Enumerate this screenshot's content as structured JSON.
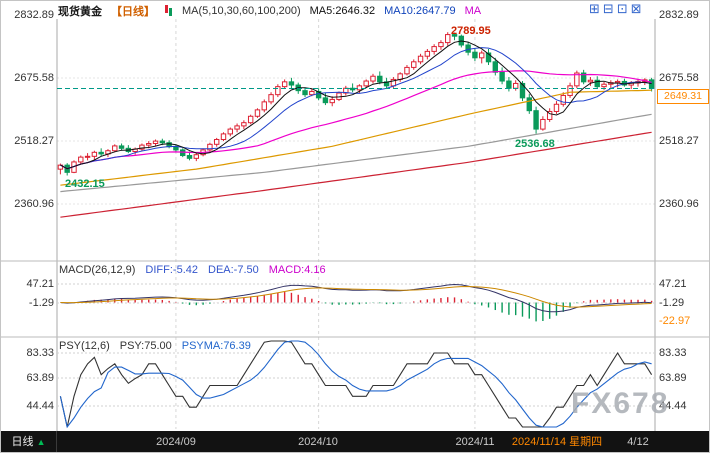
{
  "header": {
    "symbol": "现货黄金",
    "period_tag": "【日线】",
    "ma_settings": "MA(5,10,30,60,100,200)",
    "ma5": "MA5:2646.32",
    "ma10": "MA10:2647.79",
    "ma_more": "MA",
    "toolbar": [
      {
        "name": "zoom-in-icon",
        "glyph": "⊞"
      },
      {
        "name": "zoom-out-icon",
        "glyph": "⊟"
      },
      {
        "name": "pane-layout-icon",
        "glyph": "⊡"
      },
      {
        "name": "fullscreen-icon",
        "glyph": "⊠"
      }
    ]
  },
  "main_panel": {
    "ticks": [
      "2832.89",
      "2675.58",
      "2518.27",
      "2360.96"
    ],
    "last_price": "2649.31",
    "high_label": "2789.95",
    "low_label": "2536.68",
    "left_low_label": "2432.15"
  },
  "macd_panel": {
    "title": "MACD(26,12,9)",
    "diff": "DIFF:-5.42",
    "dea": "DEA:-7.50",
    "macd": "MACD:4.16",
    "ticks_left": [
      "47.21",
      "-1.29"
    ],
    "ticks_right": [
      "47.21",
      "-1.29",
      "-22.97"
    ]
  },
  "psy_panel": {
    "title": "PSY(12,6)",
    "psy": "PSY:75.00",
    "psyma": "PSYMA:76.39",
    "ticks": [
      "83.33",
      "63.89",
      "44.44"
    ]
  },
  "bottom_bar": {
    "period": "日线",
    "arrow": "▲",
    "dates": [
      "2024/09",
      "2024/10",
      "2024/11"
    ],
    "selected": "2024/11/14 星期四",
    "end": "4/12"
  },
  "watermark": "FX678",
  "chart_data": {
    "type": "candlestick",
    "title": "现货黄金 日线 (Spot Gold Daily)",
    "price_axis": {
      "ticks": [
        2832.89,
        2675.58,
        2518.27,
        2360.96
      ],
      "last": 2649.31
    },
    "x_axis": {
      "month_tick_indices": [
        17,
        38,
        61
      ]
    },
    "annotations": {
      "high": 2789.95,
      "swing_low": 2536.68,
      "left_low": 2432.15
    },
    "readout": {
      "ma5": 2646.32,
      "ma10": 2647.79,
      "diff": -5.42,
      "dea": -7.5,
      "macd": 4.16,
      "psy": 75.0,
      "psyma": 76.39
    },
    "up_color": "#dd2233",
    "down_color": "#0a9a5a",
    "last_price_line_color": "#009988",
    "candles": [
      [
        2448,
        2462,
        2435,
        2458
      ],
      [
        2458,
        2463,
        2432.15,
        2440
      ],
      [
        2440,
        2470,
        2438,
        2466
      ],
      [
        2466,
        2482,
        2460,
        2478
      ],
      [
        2478,
        2488,
        2470,
        2480
      ],
      [
        2480,
        2494,
        2472,
        2490
      ],
      [
        2490,
        2500,
        2480,
        2486
      ],
      [
        2486,
        2498,
        2478,
        2494
      ],
      [
        2494,
        2510,
        2490,
        2506
      ],
      [
        2506,
        2512,
        2494,
        2500
      ],
      [
        2500,
        2508,
        2488,
        2492
      ],
      [
        2492,
        2502,
        2484,
        2498
      ],
      [
        2498,
        2512,
        2494,
        2508
      ],
      [
        2508,
        2518,
        2500,
        2512
      ],
      [
        2512,
        2522,
        2506,
        2518
      ],
      [
        2518,
        2524,
        2508,
        2514
      ],
      [
        2514,
        2520,
        2500,
        2504
      ],
      [
        2504,
        2510,
        2492,
        2496
      ],
      [
        2496,
        2500,
        2478,
        2482
      ],
      [
        2482,
        2492,
        2470,
        2475
      ],
      [
        2475,
        2488,
        2468,
        2484
      ],
      [
        2484,
        2500,
        2480,
        2496
      ],
      [
        2496,
        2514,
        2492,
        2510
      ],
      [
        2510,
        2526,
        2504,
        2522
      ],
      [
        2522,
        2540,
        2518,
        2536
      ],
      [
        2536,
        2552,
        2530,
        2548
      ],
      [
        2548,
        2562,
        2540,
        2556
      ],
      [
        2556,
        2570,
        2548,
        2564
      ],
      [
        2564,
        2584,
        2560,
        2580
      ],
      [
        2580,
        2600,
        2576,
        2596
      ],
      [
        2596,
        2622,
        2590,
        2616
      ],
      [
        2616,
        2640,
        2610,
        2634
      ],
      [
        2634,
        2660,
        2628,
        2654
      ],
      [
        2654,
        2672,
        2648,
        2666
      ],
      [
        2666,
        2676,
        2650,
        2658
      ],
      [
        2658,
        2664,
        2636,
        2644
      ],
      [
        2644,
        2652,
        2628,
        2634
      ],
      [
        2634,
        2648,
        2630,
        2642
      ],
      [
        2642,
        2650,
        2620,
        2626
      ],
      [
        2626,
        2638,
        2608,
        2614
      ],
      [
        2614,
        2630,
        2605,
        2622
      ],
      [
        2622,
        2642,
        2618,
        2638
      ],
      [
        2638,
        2656,
        2632,
        2650
      ],
      [
        2650,
        2662,
        2640,
        2646
      ],
      [
        2646,
        2660,
        2638,
        2656
      ],
      [
        2656,
        2672,
        2650,
        2668
      ],
      [
        2668,
        2686,
        2662,
        2680
      ],
      [
        2680,
        2692,
        2660,
        2666
      ],
      [
        2666,
        2676,
        2648,
        2656
      ],
      [
        2656,
        2678,
        2650,
        2672
      ],
      [
        2672,
        2690,
        2666,
        2686
      ],
      [
        2686,
        2708,
        2682,
        2702
      ],
      [
        2702,
        2722,
        2696,
        2716
      ],
      [
        2716,
        2736,
        2710,
        2730
      ],
      [
        2730,
        2748,
        2722,
        2742
      ],
      [
        2742,
        2760,
        2734,
        2754
      ],
      [
        2754,
        2770,
        2746,
        2764
      ],
      [
        2764,
        2789.95,
        2756,
        2784
      ],
      [
        2784,
        2789,
        2770,
        2780
      ],
      [
        2780,
        2784,
        2752,
        2758
      ],
      [
        2758,
        2766,
        2732,
        2740
      ],
      [
        2740,
        2750,
        2718,
        2726
      ],
      [
        2726,
        2744,
        2712,
        2738
      ],
      [
        2738,
        2748,
        2708,
        2716
      ],
      [
        2716,
        2726,
        2682,
        2690
      ],
      [
        2690,
        2702,
        2660,
        2668
      ],
      [
        2668,
        2678,
        2642,
        2650
      ],
      [
        2650,
        2670,
        2644,
        2662
      ],
      [
        2662,
        2668,
        2618,
        2626
      ],
      [
        2626,
        2636,
        2586,
        2594
      ],
      [
        2594,
        2604,
        2536.68,
        2548
      ],
      [
        2548,
        2580,
        2544,
        2572
      ],
      [
        2572,
        2600,
        2566,
        2592
      ],
      [
        2592,
        2618,
        2586,
        2610
      ],
      [
        2610,
        2640,
        2604,
        2632
      ],
      [
        2632,
        2664,
        2626,
        2656
      ],
      [
        2656,
        2694,
        2650,
        2688
      ],
      [
        2688,
        2696,
        2660,
        2666
      ],
      [
        2666,
        2678,
        2656,
        2670
      ],
      [
        2670,
        2680,
        2648,
        2654
      ],
      [
        2654,
        2666,
        2646,
        2660
      ],
      [
        2660,
        2670,
        2650,
        2664
      ],
      [
        2664,
        2672,
        2652,
        2667
      ],
      [
        2667,
        2674,
        2654,
        2658
      ],
      [
        2658,
        2668,
        2648,
        2663
      ],
      [
        2663,
        2672,
        2654,
        2667
      ],
      [
        2667,
        2675,
        2658,
        2671
      ],
      [
        2671,
        2676,
        2642,
        2649.31
      ]
    ],
    "overlays": {
      "ma5": {
        "period": 5,
        "color": "#111111"
      },
      "ma10": {
        "period": 10,
        "color": "#2244cc"
      },
      "ma30": {
        "period": 30,
        "color": "#ee00cc"
      },
      "ma60_keypoints": [
        [
          0,
          2408
        ],
        [
          20,
          2448
        ],
        [
          40,
          2505
        ],
        [
          60,
          2585
        ],
        [
          75,
          2640
        ],
        [
          87,
          2645
        ]
      ],
      "ma60_color": "#dd9900",
      "ma100_keypoints": [
        [
          0,
          2392
        ],
        [
          30,
          2440
        ],
        [
          60,
          2505
        ],
        [
          87,
          2585
        ]
      ],
      "ma100_color": "#999999",
      "ma200_keypoints": [
        [
          0,
          2328
        ],
        [
          30,
          2395
        ],
        [
          60,
          2465
        ],
        [
          87,
          2540
        ]
      ],
      "ma200_color": "#cc2233"
    },
    "macd": {
      "fast": 12,
      "slow": 26,
      "signal": 9,
      "diff_color": "#333366",
      "dea_color": "#cc8800",
      "up_bar_color": "#dd2233",
      "down_bar_color": "#0a9a5a",
      "ticks": [
        47.21,
        -1.29,
        -22.97
      ]
    },
    "psy": {
      "period": 12,
      "ma": 6,
      "psy_color": "#333333",
      "psyma_color": "#2266cc",
      "ticks": [
        83.33,
        63.89,
        44.44
      ]
    }
  }
}
